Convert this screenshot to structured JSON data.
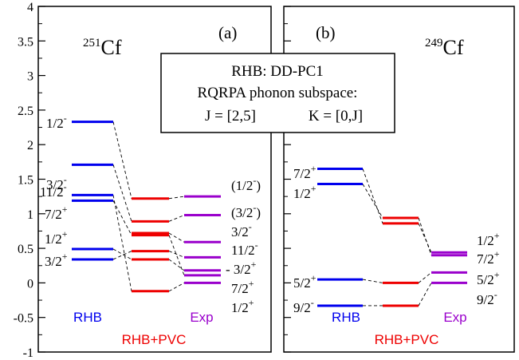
{
  "colors": {
    "rhb": "#0000ee",
    "pvc": "#ee0000",
    "exp": "#9a00cc",
    "axis": "#000000",
    "connector": "#000000"
  },
  "legend": {
    "rhb_label": "RHB",
    "pvc_label": "RHB+PVC",
    "exp_label": "Exp"
  },
  "infobox": {
    "line1": "RHB: DD-PC1",
    "line2": "RQRPA phonon subspace:",
    "line3_j": "J = [2,5]",
    "line3_k": "K = [0,J]"
  },
  "chart_data": [
    {
      "type": "level-scheme",
      "panel": "(a)",
      "nucleus_mass": "251",
      "nucleus_symbol": "Cf",
      "ylim": [
        -1,
        4
      ],
      "yticks": [
        "-1",
        "-0.5",
        "0",
        "0.5",
        "1",
        "1.5",
        "2",
        "2.5",
        "3",
        "3.5",
        "4"
      ],
      "columns": [
        {
          "name": "RHB",
          "levels": [
            {
              "label": "1/2",
              "sup": "-",
              "value": 2.33
            },
            {
              "label": "3/2",
              "sup": "-",
              "value": 1.71
            },
            {
              "label": "11/2",
              "sup": "-",
              "value": 1.27
            },
            {
              "label": "7/2",
              "sup": "+",
              "value": 1.19
            },
            {
              "label": "1/2",
              "sup": "+",
              "value": 0.49
            },
            {
              "label": "3/2",
              "sup": "+",
              "value": 0.34
            }
          ]
        },
        {
          "name": "RHB+PVC",
          "levels": [
            {
              "value": 1.22
            },
            {
              "value": 0.89
            },
            {
              "value": 0.72
            },
            {
              "value": 0.69
            },
            {
              "value": 0.46
            },
            {
              "value": 0.34
            },
            {
              "value": -0.12
            }
          ]
        },
        {
          "name": "Exp",
          "levels": [
            {
              "label": "(1/2",
              "sup": "-",
              "suffix": ")",
              "value": 1.25
            },
            {
              "label": "(3/2",
              "sup": "-",
              "suffix": ")",
              "value": 0.98
            },
            {
              "label": "3/2",
              "sup": "-",
              "value": 0.59
            },
            {
              "label": "11/2",
              "sup": "-",
              "value": 0.37
            },
            {
              "label": "3/2",
              "sup": "+",
              "value": 0.18
            },
            {
              "label": "7/2",
              "sup": "+",
              "value": 0.11
            },
            {
              "label": "1/2",
              "sup": "+",
              "value": 0.0
            }
          ]
        }
      ]
    },
    {
      "type": "level-scheme",
      "panel": "(b)",
      "nucleus_mass": "249",
      "nucleus_symbol": "Cf",
      "ylim": [
        -1,
        4
      ],
      "columns": [
        {
          "name": "RHB",
          "levels": [
            {
              "label": "7/2",
              "sup": "+",
              "value": 1.65
            },
            {
              "label": "1/2",
              "sup": "+",
              "value": 1.43
            },
            {
              "label": "5/2",
              "sup": "+",
              "value": 0.05
            },
            {
              "label": "9/2",
              "sup": "-",
              "value": -0.33
            }
          ]
        },
        {
          "name": "RHB+PVC",
          "levels": [
            {
              "value": 0.94
            },
            {
              "value": 0.86
            },
            {
              "value": 0.0
            },
            {
              "value": -0.33
            }
          ]
        },
        {
          "name": "Exp",
          "levels": [
            {
              "label": "1/2",
              "sup": "+",
              "value": 0.44
            },
            {
              "label": "7/2",
              "sup": "+",
              "value": 0.4
            },
            {
              "label": "5/2",
              "sup": "+",
              "value": 0.15
            },
            {
              "label": "9/2",
              "sup": "-",
              "value": 0.0
            }
          ]
        }
      ]
    }
  ]
}
